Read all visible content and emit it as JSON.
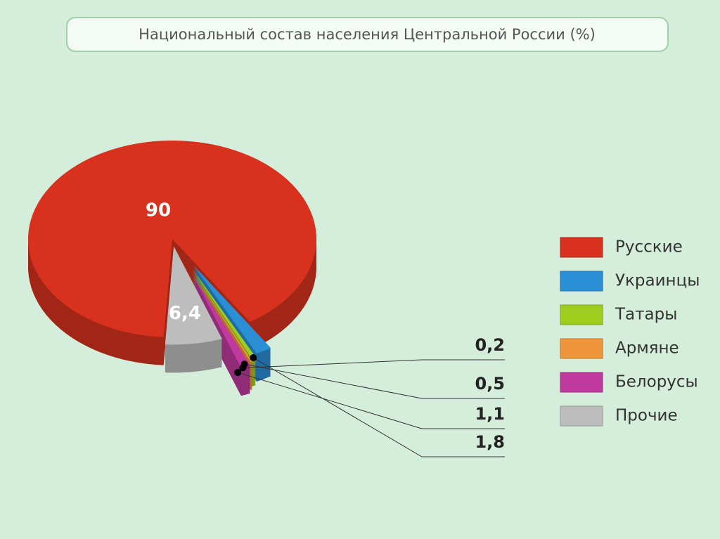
{
  "chart_data": {
    "type": "pie",
    "title": "Национальный состав населения Центральной России (%)",
    "categories": [
      "Русские",
      "Украинцы",
      "Татары",
      "Армяне",
      "Белорусы",
      "Прочие"
    ],
    "values": [
      90,
      1.8,
      0.5,
      0.2,
      1.1,
      6.4
    ],
    "value_labels": [
      "90",
      "1,8",
      "0,5",
      "0,2",
      "1,1",
      "6,4"
    ],
    "colors": [
      "#d8321f",
      "#2b8fd6",
      "#9fcd1e",
      "#ef9539",
      "#c0399f",
      "#bdbdbd"
    ],
    "legend": "right"
  }
}
